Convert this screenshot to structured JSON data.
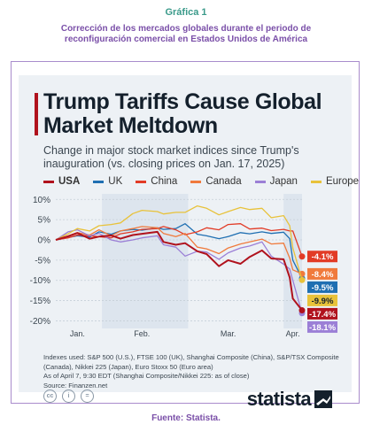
{
  "document": {
    "label": "Gráfica 1",
    "caption": "Corrección de los mercados globales durante el periodo de reconfiguración comercial en Estados Unidos de América",
    "source_caption": "Fuente: Statista."
  },
  "footer": {
    "notes": "Indexes used: S&P 500 (U.S.), FTSE 100 (UK), Shanghai Composite (China), S&P/TSX Composite (Canada), Nikkei 225 (Japan), Euro Stoxx 50 (Euro area)",
    "notes2": "As of April 7, 9:30 EDT (Shanghai Composite/Nikkei 225: as of close)",
    "source": "Source: Finanzen.net",
    "logo": "statista",
    "license_icons": [
      "cc-icon",
      "by-icon",
      "nd-icon"
    ]
  },
  "chart_data": {
    "type": "line",
    "title": "Trump Tariffs Cause Global Market Meltdown",
    "subtitle": "Change in major stock market indices since Trump's inauguration (vs. closing prices on Jan. 17, 2025)",
    "x_start": "2025-01-17",
    "x_end": "2025-04-07",
    "x_tick_labels": [
      "Jan.",
      "Feb.",
      "Mar.",
      "Apr."
    ],
    "x_tick_dates": [
      "2025-01-24",
      "2025-02-14",
      "2025-03-14",
      "2025-04-04"
    ],
    "y_ticks": [
      10,
      5,
      0,
      -5,
      -10,
      -15,
      -20
    ],
    "y_tick_labels": [
      "10%",
      "5%",
      "0%",
      "-5%",
      "-10%",
      "-15%",
      "-20%"
    ],
    "ylim": [
      -21,
      10.5
    ],
    "grid": true,
    "legend_position": "top",
    "shaded_ranges": [
      [
        "2025-02-01",
        "2025-03-01"
      ],
      [
        "2025-04-01",
        "2025-04-07"
      ]
    ],
    "series": [
      {
        "name": "USA",
        "color": "#b0121d",
        "end_label": "-17.4%",
        "x": [
          "2025-01-17",
          "2025-01-21",
          "2025-01-24",
          "2025-01-28",
          "2025-01-31",
          "2025-02-04",
          "2025-02-07",
          "2025-02-11",
          "2025-02-14",
          "2025-02-19",
          "2025-02-21",
          "2025-02-25",
          "2025-02-28",
          "2025-03-04",
          "2025-03-07",
          "2025-03-11",
          "2025-03-14",
          "2025-03-18",
          "2025-03-21",
          "2025-03-25",
          "2025-03-28",
          "2025-04-01",
          "2025-04-03",
          "2025-04-04",
          "2025-04-07"
        ],
        "values": [
          0,
          0.9,
          1.7,
          0.3,
          0.8,
          1.1,
          0.3,
          1.2,
          1.5,
          2.0,
          -0.5,
          -1.2,
          -0.8,
          -2.8,
          -3.5,
          -6.5,
          -5.0,
          -5.9,
          -4.2,
          -2.6,
          -4.6,
          -4.8,
          -9.3,
          -14.5,
          -17.4
        ]
      },
      {
        "name": "UK",
        "color": "#1f6fb2",
        "end_label": "-9.5%",
        "x": [
          "2025-01-17",
          "2025-01-21",
          "2025-01-24",
          "2025-01-28",
          "2025-01-31",
          "2025-02-04",
          "2025-02-07",
          "2025-02-11",
          "2025-02-14",
          "2025-02-19",
          "2025-02-21",
          "2025-02-25",
          "2025-02-28",
          "2025-03-04",
          "2025-03-07",
          "2025-03-11",
          "2025-03-14",
          "2025-03-18",
          "2025-03-21",
          "2025-03-25",
          "2025-03-28",
          "2025-04-01",
          "2025-04-03",
          "2025-04-04",
          "2025-04-07"
        ],
        "values": [
          0,
          0.6,
          1.0,
          0.7,
          2.0,
          1.4,
          2.2,
          2.6,
          2.4,
          3.0,
          2.6,
          2.8,
          4.0,
          1.4,
          1.0,
          0.3,
          0.8,
          1.8,
          1.5,
          2.0,
          1.6,
          1.9,
          0.3,
          -5.0,
          -9.5
        ]
      },
      {
        "name": "China",
        "color": "#e23b26",
        "end_label": "-4.1%",
        "x": [
          "2025-01-17",
          "2025-01-21",
          "2025-01-24",
          "2025-01-28",
          "2025-01-31",
          "2025-02-04",
          "2025-02-07",
          "2025-02-11",
          "2025-02-14",
          "2025-02-19",
          "2025-02-21",
          "2025-02-25",
          "2025-02-28",
          "2025-03-04",
          "2025-03-07",
          "2025-03-11",
          "2025-03-14",
          "2025-03-18",
          "2025-03-21",
          "2025-03-25",
          "2025-03-28",
          "2025-04-01",
          "2025-04-03",
          "2025-04-04",
          "2025-04-07"
        ],
        "values": [
          0,
          0.5,
          1.2,
          1.0,
          0.8,
          0.5,
          1.5,
          2.0,
          2.6,
          2.8,
          3.3,
          2.5,
          1.3,
          2.0,
          3.0,
          2.5,
          3.8,
          4.0,
          2.7,
          2.9,
          2.3,
          2.6,
          2.2,
          2.2,
          -4.1
        ]
      },
      {
        "name": "Canada",
        "color": "#f07a3c",
        "end_label": "-8.4%",
        "x": [
          "2025-01-17",
          "2025-01-21",
          "2025-01-24",
          "2025-01-28",
          "2025-01-31",
          "2025-02-04",
          "2025-02-07",
          "2025-02-11",
          "2025-02-14",
          "2025-02-19",
          "2025-02-21",
          "2025-02-25",
          "2025-02-28",
          "2025-03-04",
          "2025-03-07",
          "2025-03-11",
          "2025-03-14",
          "2025-03-18",
          "2025-03-21",
          "2025-03-25",
          "2025-03-28",
          "2025-04-01",
          "2025-04-03",
          "2025-04-04",
          "2025-04-07"
        ],
        "values": [
          0,
          1.0,
          1.8,
          1.2,
          2.5,
          1.0,
          2.2,
          2.8,
          3.3,
          3.0,
          1.6,
          0.8,
          1.6,
          -1.8,
          -2.2,
          -3.4,
          -2.0,
          -1.0,
          -0.5,
          0.2,
          -1.0,
          -0.8,
          -4.5,
          -7.4,
          -8.4
        ]
      },
      {
        "name": "Japan",
        "color": "#9b7fd6",
        "end_label": "-18.1%",
        "x": [
          "2025-01-17",
          "2025-01-21",
          "2025-01-24",
          "2025-01-28",
          "2025-01-31",
          "2025-02-04",
          "2025-02-07",
          "2025-02-11",
          "2025-02-14",
          "2025-02-19",
          "2025-02-21",
          "2025-02-25",
          "2025-02-28",
          "2025-03-04",
          "2025-03-07",
          "2025-03-11",
          "2025-03-14",
          "2025-03-18",
          "2025-03-21",
          "2025-03-25",
          "2025-03-28",
          "2025-04-01",
          "2025-04-03",
          "2025-04-04",
          "2025-04-07"
        ],
        "values": [
          0,
          2.0,
          2.5,
          1.0,
          1.6,
          0.0,
          -0.5,
          0.0,
          0.5,
          1.0,
          -1.2,
          -1.8,
          -4.0,
          -2.8,
          -3.0,
          -4.8,
          -3.2,
          -2.0,
          -1.5,
          -0.5,
          -4.0,
          -6.0,
          -7.2,
          -10.0,
          -18.1
        ]
      },
      {
        "name": "Europe",
        "color": "#e8c23a",
        "end_label": "-9.9%",
        "x": [
          "2025-01-17",
          "2025-01-21",
          "2025-01-24",
          "2025-01-28",
          "2025-01-31",
          "2025-02-04",
          "2025-02-07",
          "2025-02-11",
          "2025-02-14",
          "2025-02-19",
          "2025-02-21",
          "2025-02-25",
          "2025-02-28",
          "2025-03-04",
          "2025-03-07",
          "2025-03-11",
          "2025-03-14",
          "2025-03-18",
          "2025-03-21",
          "2025-03-25",
          "2025-03-28",
          "2025-04-01",
          "2025-04-03",
          "2025-04-04",
          "2025-04-07"
        ],
        "values": [
          0,
          1.5,
          2.8,
          2.2,
          3.5,
          3.8,
          4.2,
          6.5,
          7.3,
          7.0,
          6.4,
          6.8,
          6.8,
          8.4,
          7.8,
          6.2,
          7.0,
          8.0,
          7.5,
          7.8,
          5.5,
          6.0,
          3.5,
          -2.0,
          -9.9
        ]
      }
    ]
  }
}
